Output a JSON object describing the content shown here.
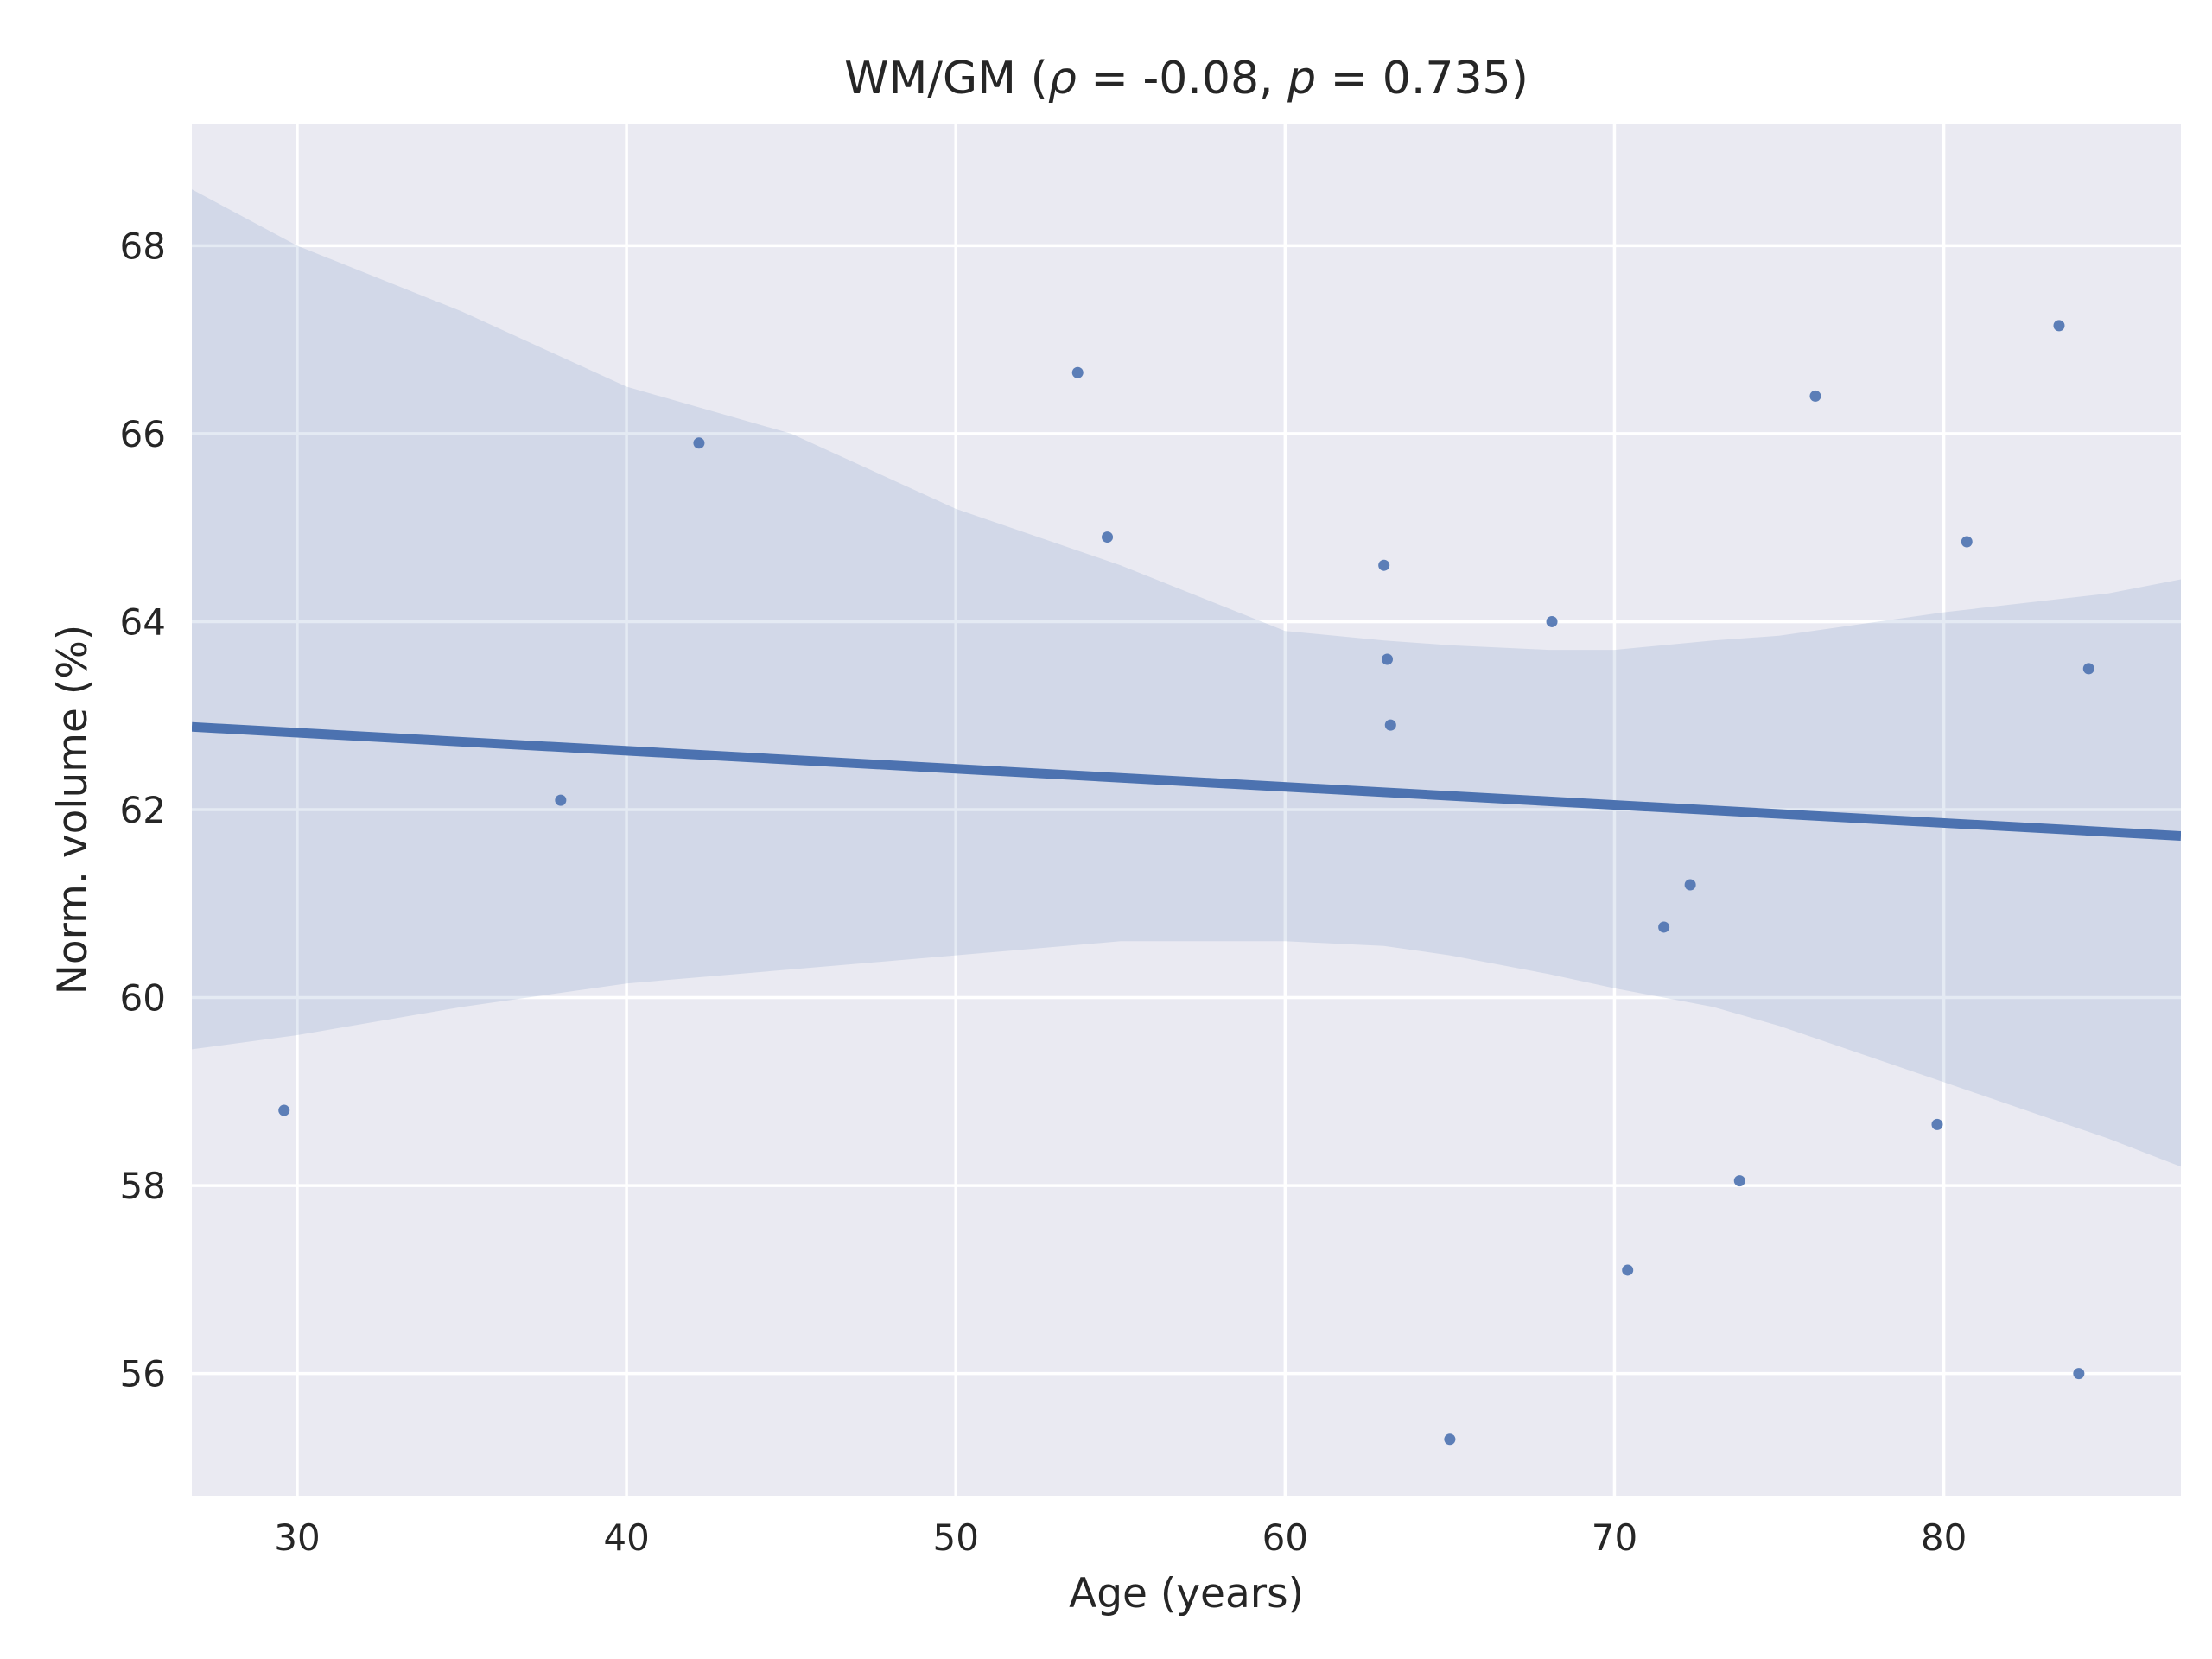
{
  "title_parts": {
    "p1": "WM/GM (",
    "rho_sym": "ρ",
    "p2": " = -0.08, ",
    "p_sym": "p",
    "p3": " = 0.735)"
  },
  "colors": {
    "background": "#EAEAF2",
    "grid": "#FFFFFF",
    "points": "#4C72B0",
    "line": "#4C72B0",
    "band": "#4C72B0"
  },
  "chart_data": {
    "type": "scatter",
    "title": "WM/GM (ρ = -0.08, p = 0.735)",
    "xlabel": "Age (years)",
    "ylabel": "Norm. volume (%)",
    "xlim": [
      26.8,
      87.2
    ],
    "ylim": [
      54.7,
      69.3
    ],
    "xticks": [
      "30",
      "40",
      "50",
      "60",
      "70",
      "80"
    ],
    "yticks": [
      "56",
      "58",
      "60",
      "62",
      "64",
      "66",
      "68"
    ],
    "grid": true,
    "x": [
      29.6,
      38.0,
      42.2,
      53.7,
      54.6,
      63.0,
      63.1,
      63.2,
      65.0,
      68.1,
      70.4,
      71.5,
      72.3,
      73.8,
      76.1,
      79.8,
      80.7,
      83.5,
      84.1,
      84.4
    ],
    "y": [
      58.8,
      62.1,
      65.9,
      66.65,
      64.9,
      64.6,
      63.6,
      62.9,
      55.3,
      64.0,
      57.1,
      60.75,
      61.2,
      58.05,
      66.4,
      58.65,
      64.85,
      67.15,
      56.0,
      63.5
    ],
    "regression_line": {
      "x": [
        26.8,
        87.2
      ],
      "y": [
        62.88,
        61.72
      ]
    },
    "confidence_band": {
      "x": [
        26.8,
        30.0,
        35.0,
        40.0,
        45.0,
        50.0,
        55.0,
        60.0,
        63.0,
        65.0,
        68.0,
        70.0,
        73.0,
        75.0,
        80.0,
        85.0,
        87.2
      ],
      "upper": [
        68.6,
        68.0,
        67.3,
        66.5,
        66.0,
        65.2,
        64.6,
        63.9,
        63.8,
        63.75,
        63.7,
        63.7,
        63.8,
        63.85,
        64.1,
        64.3,
        64.45
      ],
      "lower": [
        59.45,
        59.6,
        59.9,
        60.15,
        60.3,
        60.45,
        60.6,
        60.6,
        60.55,
        60.45,
        60.25,
        60.1,
        59.9,
        59.7,
        59.1,
        58.5,
        58.2
      ]
    }
  }
}
